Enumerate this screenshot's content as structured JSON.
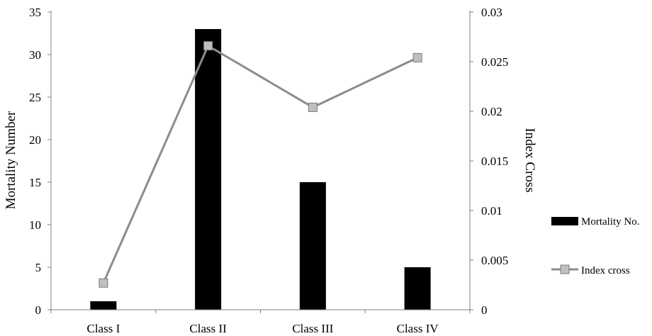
{
  "chart_data": {
    "type": "bar",
    "categories": [
      "Class I",
      "Class II",
      "Class III",
      "Class IV"
    ],
    "series": [
      {
        "name": "Mortality No.",
        "type": "bar",
        "axis": "left",
        "color": "#000000",
        "values": [
          1,
          33,
          15,
          5
        ]
      },
      {
        "name": "Index cross",
        "type": "line",
        "axis": "right",
        "color": "#8c8c8c",
        "marker": "square",
        "marker_color": "#bfbfbf",
        "values": [
          0.0027,
          0.0266,
          0.0204,
          0.0254
        ]
      }
    ],
    "ylabel": "Mortality Number",
    "ylabel_right": "Index Cross",
    "ylim": [
      0,
      35
    ],
    "ylim_right": [
      0,
      0.03
    ],
    "yticks": [
      "0",
      "5",
      "10",
      "15",
      "20",
      "25",
      "30",
      "35"
    ],
    "yticks_right": [
      "0",
      "0.005",
      "0.01",
      "0.015",
      "0.02",
      "0.025",
      "0.03"
    ],
    "grid": false,
    "legend": "right"
  }
}
